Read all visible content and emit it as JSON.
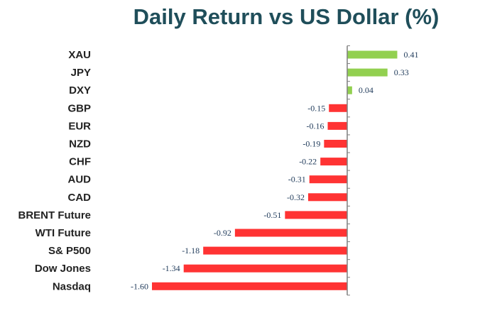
{
  "chart_data": {
    "type": "bar",
    "orientation": "horizontal",
    "title": "Daily Return vs US Dollar (%)",
    "categories": [
      "XAU",
      "JPY",
      "DXY",
      "GBP",
      "EUR",
      "NZD",
      "CHF",
      "AUD",
      "CAD",
      "BRENT Future",
      "WTI Future",
      "S& P500",
      "Dow Jones",
      "Nasdaq"
    ],
    "values": [
      0.41,
      0.33,
      0.04,
      -0.15,
      -0.16,
      -0.19,
      -0.22,
      -0.31,
      -0.32,
      -0.51,
      -0.92,
      -1.18,
      -1.34,
      -1.6
    ],
    "value_labels": [
      "0.41",
      "0.33",
      "0.04",
      "-0.15",
      "-0.16",
      "-0.19",
      "-0.22",
      "-0.31",
      "-0.32",
      "-0.51",
      "-0.92",
      "-1.18",
      "-1.34",
      "-1.60"
    ],
    "xlim": [
      -1.6,
      0.41
    ],
    "grid": false,
    "legend": "none",
    "colors": {
      "positive": "#92d050",
      "negative": "#ff3333",
      "axis": "#7f7f7f"
    }
  }
}
